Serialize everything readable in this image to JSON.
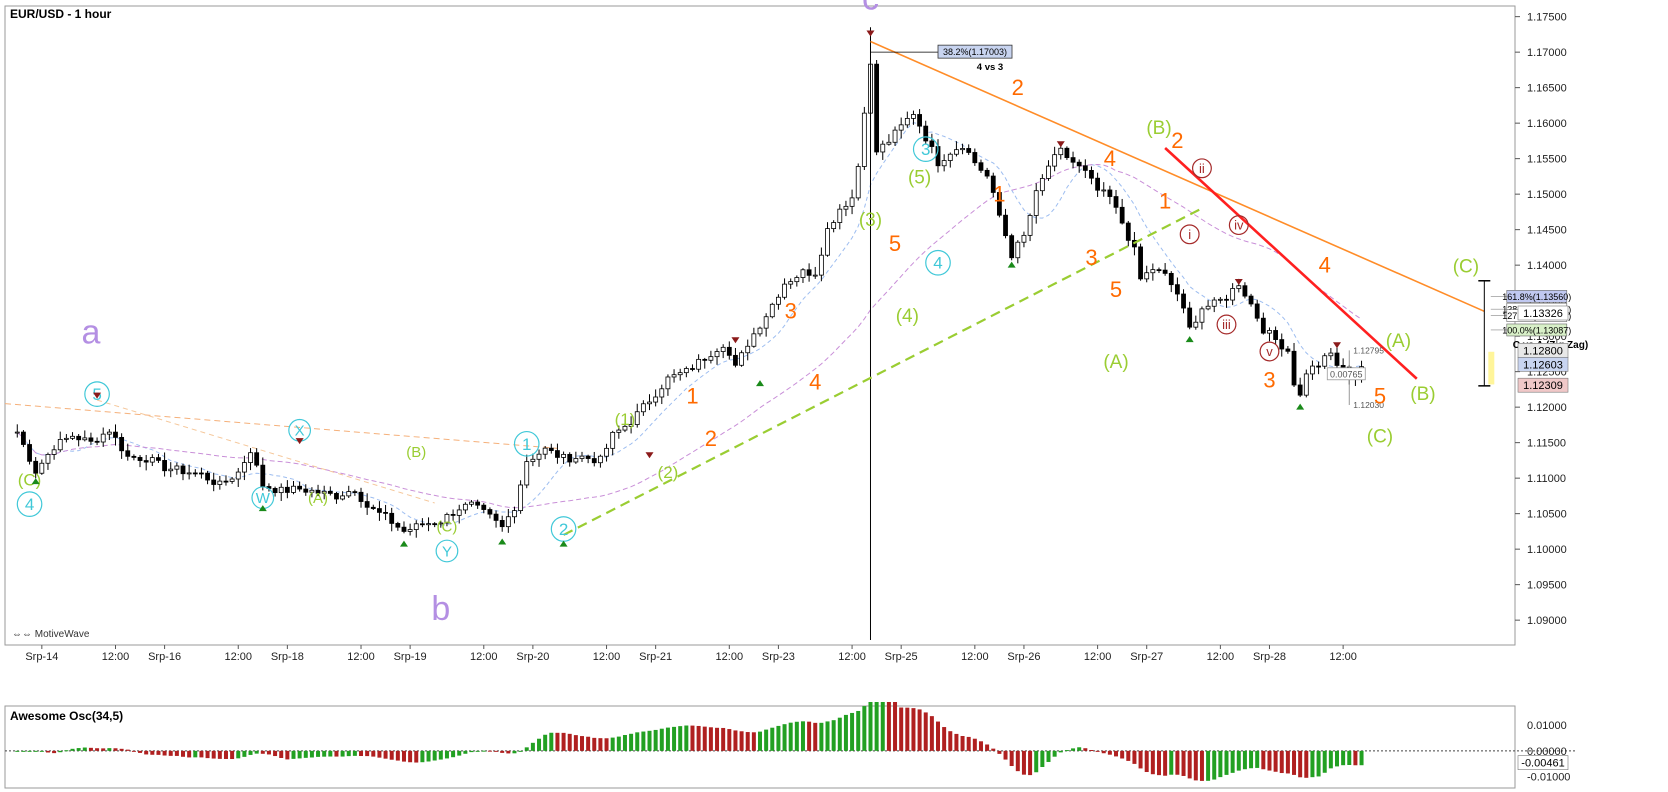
{
  "chart_data": [
    {
      "type": "candlestick",
      "title": "EUR/USD - 1 hour",
      "footer": "MotiveWave",
      "y_ticks": [
        "1.17500",
        "1.17000",
        "1.16500",
        "1.16000",
        "1.15500",
        "1.15000",
        "1.14500",
        "1.14000",
        "1.13500",
        "1.13000",
        "1.12500",
        "1.12000",
        "1.11500",
        "1.11000",
        "1.10500",
        "1.10000",
        "1.09500",
        "1.09000"
      ],
      "ylim": [
        1.0865,
        1.1765
      ],
      "x_labels": [
        {
          "t": 4,
          "label": "Srp-14"
        },
        {
          "t": 16,
          "label": "12:00"
        },
        {
          "t": 24,
          "label": "Srp-16"
        },
        {
          "t": 36,
          "label": "12:00"
        },
        {
          "t": 44,
          "label": "Srp-18"
        },
        {
          "t": 56,
          "label": "12:00"
        },
        {
          "t": 64,
          "label": "Srp-19"
        },
        {
          "t": 76,
          "label": "12:00"
        },
        {
          "t": 84,
          "label": "Srp-20"
        },
        {
          "t": 96,
          "label": "12:00"
        },
        {
          "t": 104,
          "label": "Srp-21"
        },
        {
          "t": 116,
          "label": "12:00"
        },
        {
          "t": 124,
          "label": "Srp-23"
        },
        {
          "t": 136,
          "label": "12:00"
        },
        {
          "t": 144,
          "label": "Srp-25"
        },
        {
          "t": 156,
          "label": "12:00"
        },
        {
          "t": 164,
          "label": "Srp-26"
        },
        {
          "t": 176,
          "label": "12:00"
        },
        {
          "t": 184,
          "label": "Srp-27"
        },
        {
          "t": 196,
          "label": "12:00"
        },
        {
          "t": 204,
          "label": "Srp-28"
        },
        {
          "t": 216,
          "label": "12:00"
        }
      ],
      "price_path": [
        [
          0,
          1.1165
        ],
        [
          3,
          1.111
        ],
        [
          6,
          1.1145
        ],
        [
          9,
          1.116
        ],
        [
          12,
          1.115
        ],
        [
          15,
          1.1168
        ],
        [
          18,
          1.113
        ],
        [
          21,
          1.1128
        ],
        [
          24,
          1.1115
        ],
        [
          27,
          1.111
        ],
        [
          30,
          1.1105
        ],
        [
          33,
          1.109
        ],
        [
          36,
          1.1108
        ],
        [
          38,
          1.114
        ],
        [
          40,
          1.109
        ],
        [
          43,
          1.1082
        ],
        [
          46,
          1.1085
        ],
        [
          49,
          1.108
        ],
        [
          52,
          1.1075
        ],
        [
          55,
          1.1085
        ],
        [
          57,
          1.106
        ],
        [
          60,
          1.1045
        ],
        [
          63,
          1.1025
        ],
        [
          66,
          1.1035
        ],
        [
          69,
          1.104
        ],
        [
          72,
          1.1058
        ],
        [
          74,
          1.1062
        ],
        [
          77,
          1.1045
        ],
        [
          79,
          1.103
        ],
        [
          81,
          1.106
        ],
        [
          83,
          1.1125
        ],
        [
          86,
          1.114
        ],
        [
          89,
          1.1128
        ],
        [
          92,
          1.113
        ],
        [
          95,
          1.1125
        ],
        [
          97,
          1.116
        ],
        [
          100,
          1.118
        ],
        [
          103,
          1.121
        ],
        [
          106,
          1.124
        ],
        [
          109,
          1.125
        ],
        [
          112,
          1.127
        ],
        [
          115,
          1.129
        ],
        [
          117,
          1.1255
        ],
        [
          119,
          1.129
        ],
        [
          122,
          1.133
        ],
        [
          125,
          1.1375
        ],
        [
          128,
          1.139
        ],
        [
          130,
          1.139
        ],
        [
          132,
          1.145
        ],
        [
          134,
          1.148
        ],
        [
          136,
          1.1495
        ],
        [
          137,
          1.154
        ],
        [
          138,
          1.162
        ],
        [
          139,
          1.168
        ],
        [
          140,
          1.156
        ],
        [
          142,
          1.1575
        ],
        [
          144,
          1.1595
        ],
        [
          146,
          1.1615
        ],
        [
          148,
          1.158
        ],
        [
          150,
          1.1545
        ],
        [
          152,
          1.156
        ],
        [
          154,
          1.157
        ],
        [
          156,
          1.1545
        ],
        [
          158,
          1.1525
        ],
        [
          160,
          1.147
        ],
        [
          162,
          1.1415
        ],
        [
          164,
          1.144
        ],
        [
          166,
          1.15
        ],
        [
          168,
          1.154
        ],
        [
          170,
          1.156
        ],
        [
          172,
          1.1545
        ],
        [
          174,
          1.153
        ],
        [
          176,
          1.1505
        ],
        [
          178,
          1.1495
        ],
        [
          180,
          1.146
        ],
        [
          182,
          1.142
        ],
        [
          183,
          1.138
        ],
        [
          185,
          1.1395
        ],
        [
          187,
          1.1385
        ],
        [
          189,
          1.136
        ],
        [
          191,
          1.131
        ],
        [
          193,
          1.134
        ],
        [
          195,
          1.1345
        ],
        [
          197,
          1.1355
        ],
        [
          199,
          1.1375
        ],
        [
          201,
          1.1345
        ],
        [
          203,
          1.131
        ],
        [
          205,
          1.1295
        ],
        [
          207,
          1.128
        ],
        [
          208,
          1.1235
        ],
        [
          209,
          1.1215
        ],
        [
          210,
          1.125
        ],
        [
          212,
          1.126
        ],
        [
          214,
          1.1275
        ],
        [
          215,
          1.126
        ],
        [
          217,
          1.1245
        ],
        [
          218,
          1.1248
        ],
        [
          219,
          1.1258
        ]
      ],
      "wave_labels": [
        {
          "t": 139,
          "p": 1.176,
          "text": "c",
          "color": "#b48fe3",
          "size": 34
        },
        {
          "t": 12,
          "p": 1.129,
          "text": "a",
          "color": "#b48fe3",
          "size": 34
        },
        {
          "t": 69,
          "p": 1.09,
          "text": "b",
          "color": "#b48fe3",
          "size": 34
        },
        {
          "t": 2,
          "p": 1.109,
          "text": "(C)",
          "color": "#9acd32",
          "size": 17
        },
        {
          "t": 2,
          "p": 1.1055,
          "text": "4",
          "color": "#40c8d8",
          "size": 17,
          "circle": true
        },
        {
          "t": 13,
          "p": 1.121,
          "text": "5",
          "color": "#40c8d8",
          "size": 17,
          "circle": true
        },
        {
          "t": 40,
          "p": 1.1065,
          "text": "W",
          "color": "#40c8d8",
          "size": 15,
          "circle": true
        },
        {
          "t": 46,
          "p": 1.116,
          "text": "X",
          "color": "#40c8d8",
          "size": 15,
          "circle": true
        },
        {
          "t": 49,
          "p": 1.1065,
          "text": "(A)",
          "color": "#9acd32",
          "size": 15
        },
        {
          "t": 65,
          "p": 1.113,
          "text": "(B)",
          "color": "#9acd32",
          "size": 15
        },
        {
          "t": 70,
          "p": 1.1025,
          "text": "(C)",
          "color": "#9acd32",
          "size": 15
        },
        {
          "t": 70,
          "p": 1.099,
          "text": "Y",
          "color": "#40c8d8",
          "size": 15,
          "circle": true
        },
        {
          "t": 83,
          "p": 1.114,
          "text": "1",
          "color": "#40c8d8",
          "size": 17,
          "circle": true
        },
        {
          "t": 89,
          "p": 1.102,
          "text": "2",
          "color": "#40c8d8",
          "size": 17,
          "circle": true
        },
        {
          "t": 99,
          "p": 1.1175,
          "text": "(1)",
          "color": "#9acd32",
          "size": 17
        },
        {
          "t": 106,
          "p": 1.11,
          "text": "(2)",
          "color": "#9acd32",
          "size": 17
        },
        {
          "t": 110,
          "p": 1.1205,
          "text": "1",
          "color": "#ff6a00",
          "size": 22
        },
        {
          "t": 113,
          "p": 1.1145,
          "text": "2",
          "color": "#ff6a00",
          "size": 22
        },
        {
          "t": 126,
          "p": 1.1325,
          "text": "3",
          "color": "#ff6a00",
          "size": 22
        },
        {
          "t": 130,
          "p": 1.1225,
          "text": "4",
          "color": "#ff6a00",
          "size": 22
        },
        {
          "t": 139,
          "p": 1.1455,
          "text": "(3)",
          "color": "#9acd32",
          "size": 19
        },
        {
          "t": 143,
          "p": 1.142,
          "text": "5",
          "color": "#ff6a00",
          "size": 22
        },
        {
          "t": 147,
          "p": 1.1515,
          "text": "(5)",
          "color": "#9acd32",
          "size": 19
        },
        {
          "t": 148,
          "p": 1.1555,
          "text": "3",
          "color": "#40c8d8",
          "size": 17,
          "circle": true
        },
        {
          "t": 145,
          "p": 1.132,
          "text": "(4)",
          "color": "#9acd32",
          "size": 19
        },
        {
          "t": 150,
          "p": 1.1395,
          "text": "4",
          "color": "#40c8d8",
          "size": 17,
          "circle": true
        },
        {
          "t": 160,
          "p": 1.149,
          "text": "1",
          "color": "#ff6a00",
          "size": 22
        },
        {
          "t": 163,
          "p": 1.164,
          "text": "2",
          "color": "#ff6a00",
          "size": 22
        },
        {
          "t": 175,
          "p": 1.14,
          "text": "3",
          "color": "#ff6a00",
          "size": 22
        },
        {
          "t": 178,
          "p": 1.154,
          "text": "4",
          "color": "#ff6a00",
          "size": 22
        },
        {
          "t": 179,
          "p": 1.1355,
          "text": "5",
          "color": "#ff6a00",
          "size": 22
        },
        {
          "t": 179,
          "p": 1.1255,
          "text": "(A)",
          "color": "#9acd32",
          "size": 19
        },
        {
          "t": 186,
          "p": 1.1585,
          "text": "(B)",
          "color": "#9acd32",
          "size": 19
        },
        {
          "t": 189,
          "p": 1.1565,
          "text": "2",
          "color": "#ff6a00",
          "size": 22
        },
        {
          "t": 187,
          "p": 1.148,
          "text": "1",
          "color": "#ff6a00",
          "size": 22
        },
        {
          "t": 191,
          "p": 1.1437,
          "text": "i",
          "color": "#a52a2a",
          "size": 13,
          "circle": true
        },
        {
          "t": 193,
          "p": 1.153,
          "text": "ii",
          "color": "#a52a2a",
          "size": 13,
          "circle": true
        },
        {
          "t": 197,
          "p": 1.131,
          "text": "iii",
          "color": "#a52a2a",
          "size": 13,
          "circle": true
        },
        {
          "t": 199,
          "p": 1.145,
          "text": "iv",
          "color": "#a52a2a",
          "size": 13,
          "circle": true
        },
        {
          "t": 204,
          "p": 1.1272,
          "text": "v",
          "color": "#a52a2a",
          "size": 13,
          "circle": true
        },
        {
          "t": 204,
          "p": 1.1228,
          "text": "3",
          "color": "#ff6a00",
          "size": 22
        },
        {
          "t": 213,
          "p": 1.139,
          "text": "4",
          "color": "#ff6a00",
          "size": 22
        },
        {
          "t": 222,
          "p": 1.1205,
          "text": "5",
          "color": "#ff6a00",
          "size": 22
        },
        {
          "t": 222,
          "p": 1.115,
          "text": "(C)",
          "color": "#9acd32",
          "size": 19
        },
        {
          "t": 225,
          "p": 1.1285,
          "text": "(A)",
          "color": "#9acd32",
          "size": 19
        },
        {
          "t": 229,
          "p": 1.121,
          "text": "(B)",
          "color": "#9acd32",
          "size": 19
        },
        {
          "t": 236,
          "p": 1.139,
          "text": "(C)",
          "color": "#9acd32",
          "size": 19
        }
      ],
      "fib_levels": [
        {
          "label": "161.8%(1.13560)",
          "price": 1.1356,
          "color": "#c0c8f0"
        },
        {
          "label": "138.2%(1.13379)",
          "price": 1.1338,
          "color": "#ffffff"
        },
        {
          "label": "127.2%(1.13293)",
          "price": 1.1329,
          "color": "#ffffff"
        },
        {
          "label": "100.0%(1.13087)",
          "price": 1.13087,
          "color": "#d8f0c8"
        }
      ],
      "fib_note": "C vs A (Zig Zag)",
      "retrace_label": "38.2%(1.17003)",
      "retrace_note": "4 vs 3",
      "measure_high": "1.12795",
      "measure_range": "0.00765",
      "measure_low": "1.12030",
      "price_tags": [
        {
          "text": "1.12800",
          "price": 1.128,
          "bg": "#e8e8e8",
          "fg": "#000"
        },
        {
          "text": "1.12603",
          "price": 1.12603,
          "bg": "#c8d4f0",
          "fg": "#000"
        },
        {
          "text": "1.13326",
          "price": 1.13326,
          "bg": "#ffffff",
          "fg": "#000"
        },
        {
          "text": "1.12309",
          "price": 1.12309,
          "bg": "#f0c8c8",
          "fg": "#000"
        }
      ]
    },
    {
      "type": "bar",
      "title": "Awesome Osc(34,5)",
      "y_ticks": [
        "0.01000",
        "0.00000",
        "-0.01000"
      ],
      "current_value": "-0.00461",
      "ylim": [
        -0.0145,
        0.0175
      ],
      "values_generated_from_path": true
    }
  ]
}
